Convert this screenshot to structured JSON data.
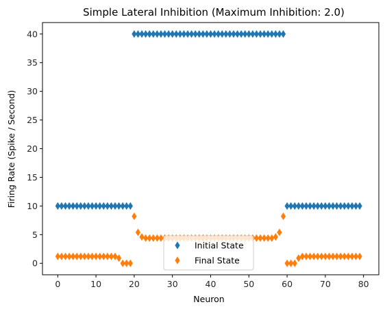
{
  "chart_data": {
    "type": "scatter",
    "title": "Simple Lateral Inhibition (Maximum Inhibition: 2.0)",
    "xlabel": "Neuron",
    "ylabel": "Firing Rate (Spike / Second)",
    "xlim": [
      -4,
      84
    ],
    "ylim": [
      -2,
      42
    ],
    "xticks": [
      0,
      10,
      20,
      30,
      40,
      50,
      60,
      70,
      80
    ],
    "yticks": [
      0,
      5,
      10,
      15,
      20,
      25,
      30,
      35,
      40
    ],
    "grid": false,
    "marker": "diamond",
    "legend_position": "bottom-center",
    "series": [
      {
        "name": "Initial State",
        "color": "#1f77b4",
        "x": [
          0,
          1,
          2,
          3,
          4,
          5,
          6,
          7,
          8,
          9,
          10,
          11,
          12,
          13,
          14,
          15,
          16,
          17,
          18,
          19,
          20,
          21,
          22,
          23,
          24,
          25,
          26,
          27,
          28,
          29,
          30,
          31,
          32,
          33,
          34,
          35,
          36,
          37,
          38,
          39,
          40,
          41,
          42,
          43,
          44,
          45,
          46,
          47,
          48,
          49,
          50,
          51,
          52,
          53,
          54,
          55,
          56,
          57,
          58,
          59,
          60,
          61,
          62,
          63,
          64,
          65,
          66,
          67,
          68,
          69,
          70,
          71,
          72,
          73,
          74,
          75,
          76,
          77,
          78,
          79
        ],
        "y": [
          10,
          10,
          10,
          10,
          10,
          10,
          10,
          10,
          10,
          10,
          10,
          10,
          10,
          10,
          10,
          10,
          10,
          10,
          10,
          10,
          40,
          40,
          40,
          40,
          40,
          40,
          40,
          40,
          40,
          40,
          40,
          40,
          40,
          40,
          40,
          40,
          40,
          40,
          40,
          40,
          40,
          40,
          40,
          40,
          40,
          40,
          40,
          40,
          40,
          40,
          40,
          40,
          40,
          40,
          40,
          40,
          40,
          40,
          40,
          40,
          10,
          10,
          10,
          10,
          10,
          10,
          10,
          10,
          10,
          10,
          10,
          10,
          10,
          10,
          10,
          10,
          10,
          10,
          10,
          10
        ]
      },
      {
        "name": "Final State",
        "color": "#ff7f0e",
        "x": [
          0,
          1,
          2,
          3,
          4,
          5,
          6,
          7,
          8,
          9,
          10,
          11,
          12,
          13,
          14,
          15,
          16,
          17,
          18,
          19,
          20,
          21,
          22,
          23,
          24,
          25,
          26,
          27,
          28,
          29,
          30,
          31,
          32,
          33,
          34,
          35,
          36,
          37,
          38,
          39,
          40,
          41,
          42,
          43,
          44,
          45,
          46,
          47,
          48,
          49,
          50,
          51,
          52,
          53,
          54,
          55,
          56,
          57,
          58,
          59,
          60,
          61,
          62,
          63,
          64,
          65,
          66,
          67,
          68,
          69,
          70,
          71,
          72,
          73,
          74,
          75,
          76,
          77,
          78,
          79
        ],
        "y": [
          1.2,
          1.2,
          1.2,
          1.2,
          1.2,
          1.2,
          1.2,
          1.2,
          1.2,
          1.2,
          1.2,
          1.2,
          1.2,
          1.2,
          1.2,
          1.2,
          0.9,
          0,
          0,
          0,
          8.2,
          5.4,
          4.6,
          4.4,
          4.4,
          4.4,
          4.4,
          4.4,
          4.4,
          4.4,
          4.4,
          4.4,
          4.4,
          4.4,
          4.4,
          4.4,
          4.4,
          4.4,
          4.4,
          4.4,
          4.4,
          4.4,
          4.4,
          4.4,
          4.4,
          4.4,
          4.4,
          4.4,
          4.4,
          4.4,
          4.4,
          4.4,
          4.4,
          4.4,
          4.4,
          4.4,
          4.4,
          4.6,
          5.4,
          8.2,
          0,
          0,
          0,
          0.9,
          1.2,
          1.2,
          1.2,
          1.2,
          1.2,
          1.2,
          1.2,
          1.2,
          1.2,
          1.2,
          1.2,
          1.2,
          1.2,
          1.2,
          1.2,
          1.2
        ]
      }
    ]
  }
}
